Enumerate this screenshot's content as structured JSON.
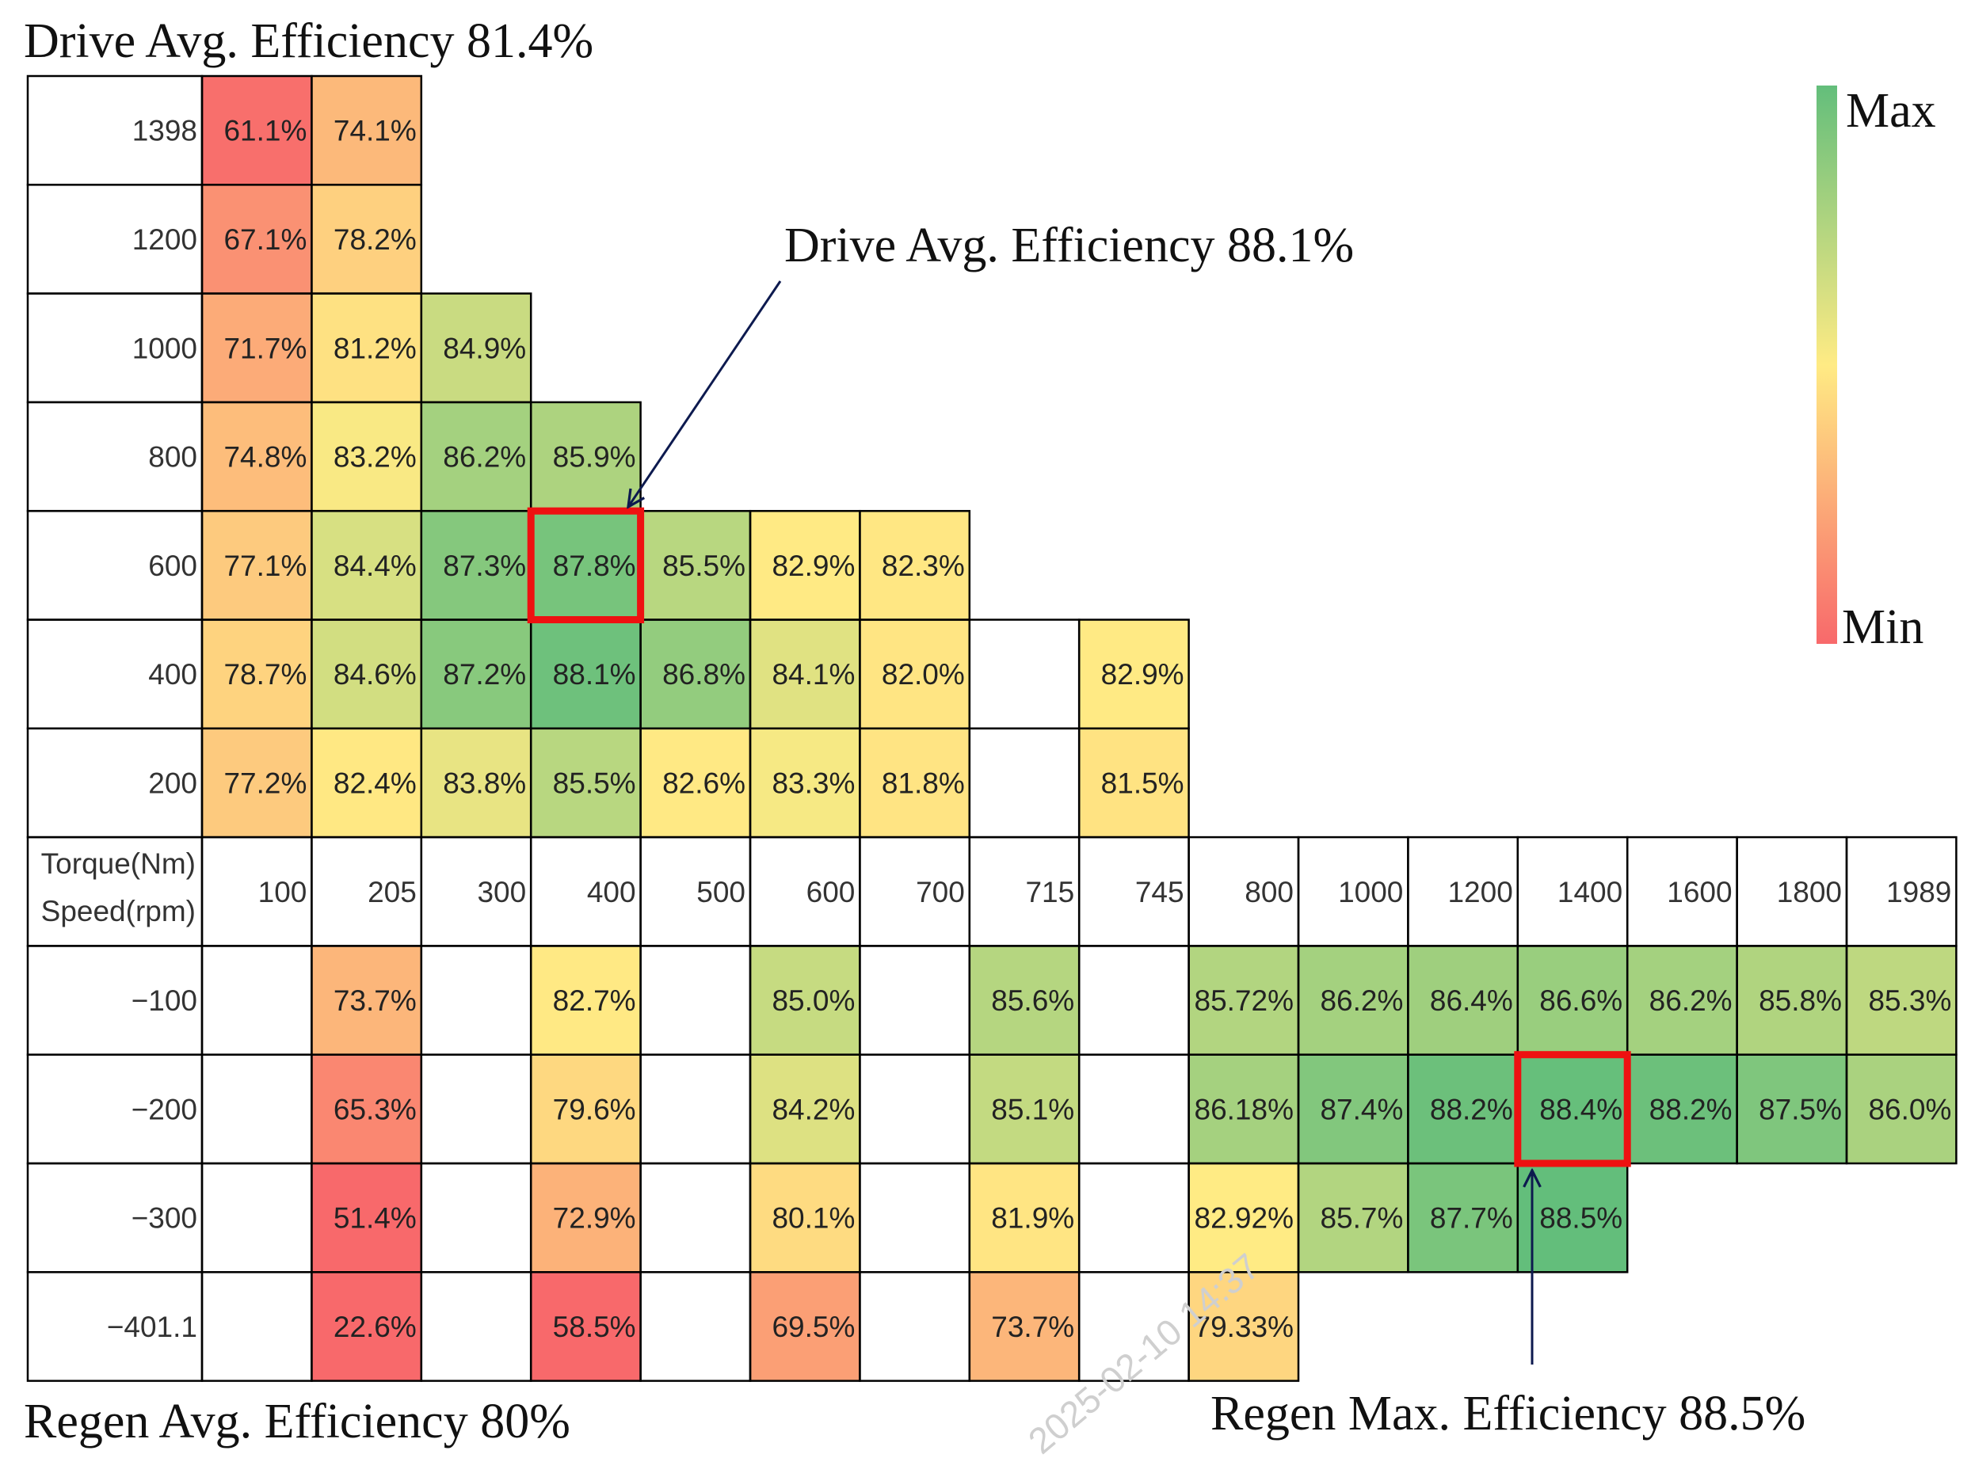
{
  "chart_data": {
    "type": "heatmap",
    "title": "Drive Avg. Efficiency 81.4%",
    "x_label": "Speed(rpm)",
    "y_label": "Torque(Nm)",
    "x_categories": [
      "100",
      "205",
      "300",
      "400",
      "500",
      "600",
      "700",
      "715",
      "745",
      "800",
      "1000",
      "1200",
      "1400",
      "1600",
      "1800",
      "1989"
    ],
    "y_categories": [
      "1398",
      "1200",
      "1000",
      "800",
      "600",
      "400",
      "200",
      "-100",
      "-200",
      "-300",
      "-401.1"
    ],
    "y_display": [
      "1398",
      "1200",
      "1000",
      "800",
      "600",
      "400",
      "200",
      "−100",
      "−200",
      "−300",
      "−401.1"
    ],
    "values": [
      [
        "61.1%",
        "74.1%",
        null,
        null,
        null,
        null,
        null,
        null,
        null,
        null,
        null,
        null,
        null,
        null,
        null,
        null
      ],
      [
        "67.1%",
        "78.2%",
        null,
        null,
        null,
        null,
        null,
        null,
        null,
        null,
        null,
        null,
        null,
        null,
        null,
        null
      ],
      [
        "71.7%",
        "81.2%",
        "84.9%",
        null,
        null,
        null,
        null,
        null,
        null,
        null,
        null,
        null,
        null,
        null,
        null,
        null
      ],
      [
        "74.8%",
        "83.2%",
        "86.2%",
        "85.9%",
        null,
        null,
        null,
        null,
        null,
        null,
        null,
        null,
        null,
        null,
        null,
        null
      ],
      [
        "77.1%",
        "84.4%",
        "87.3%",
        "87.8%",
        "85.5%",
        "82.9%",
        "82.3%",
        null,
        null,
        null,
        null,
        null,
        null,
        null,
        null,
        null
      ],
      [
        "78.7%",
        "84.6%",
        "87.2%",
        "88.1%",
        "86.8%",
        "84.1%",
        "82.0%",
        null,
        "82.9%",
        null,
        null,
        null,
        null,
        null,
        null,
        null
      ],
      [
        "77.2%",
        "82.4%",
        "83.8%",
        "85.5%",
        "82.6%",
        "83.3%",
        "81.8%",
        null,
        "81.5%",
        null,
        null,
        null,
        null,
        null,
        null,
        null
      ],
      [
        null,
        "73.7%",
        null,
        "82.7%",
        null,
        "85.0%",
        null,
        "85.6%",
        null,
        "85.72%",
        "86.2%",
        "86.4%",
        "86.6%",
        "86.2%",
        "85.8%",
        "85.3%"
      ],
      [
        null,
        "65.3%",
        null,
        "79.6%",
        null,
        "84.2%",
        null,
        "85.1%",
        null,
        "86.18%",
        "87.4%",
        "88.2%",
        "88.4%",
        "88.2%",
        "87.5%",
        "86.0%"
      ],
      [
        null,
        "51.4%",
        null,
        "72.9%",
        null,
        "80.1%",
        null,
        "81.9%",
        null,
        "82.92%",
        "85.7%",
        "87.7%",
        "88.5%",
        null,
        null,
        null
      ],
      [
        null,
        "22.6%",
        null,
        "58.5%",
        null,
        "69.5%",
        null,
        "73.7%",
        null,
        "79.33%",
        null,
        null,
        null,
        null,
        null,
        null
      ]
    ],
    "highlighted_cells": [
      {
        "row": 4,
        "col": 3
      },
      {
        "row": 8,
        "col": 12
      }
    ],
    "color_scale": {
      "min_label": "Min",
      "max_label": "Max",
      "min_color": "#f8696b",
      "mid_color": "#ffeb84",
      "max_color": "#63be7b",
      "min_value": 60,
      "mid_value": 83,
      "max_value": 88.5
    },
    "annotations": [
      {
        "id": "drive-avg-top",
        "text": "Drive Avg. Efficiency 81.4%"
      },
      {
        "id": "drive-avg-mid",
        "text": "Drive Avg. Efficiency 88.1%"
      },
      {
        "id": "regen-avg",
        "text": "Regen Avg. Efficiency 80%"
      },
      {
        "id": "regen-max",
        "text": "Regen Max. Efficiency 88.5%"
      }
    ],
    "watermark": "2025-02-10 14:37"
  },
  "colors": {
    "grid_line": "#000000",
    "highlight_box": "#ee1111",
    "arrow": "#0d1a4f"
  }
}
